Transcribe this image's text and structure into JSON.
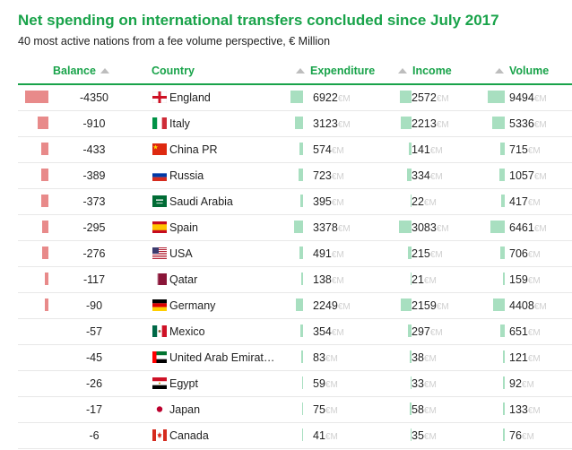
{
  "title": "Net spending on international transfers concluded since July 2017",
  "subtitle": "40 most active nations from a fee volume perspective, € Million",
  "unit": "€M",
  "columns": {
    "balance": "Balance",
    "country": "Country",
    "expenditure": "Expenditure",
    "income": "Income",
    "volume": "Volume"
  },
  "colors": {
    "accent": "#19a34a",
    "balance_bar": "#e88a8a",
    "value_bar": "#a8dfc0"
  },
  "chart_data": {
    "type": "table",
    "rows": [
      {
        "balance": "-4350",
        "country": "England",
        "flag": "england",
        "expenditure": "6922",
        "income": "2572",
        "volume": "9494"
      },
      {
        "balance": "-910",
        "country": "Italy",
        "flag": "italy",
        "expenditure": "3123",
        "income": "2213",
        "volume": "5336"
      },
      {
        "balance": "-433",
        "country": "China PR",
        "flag": "china",
        "expenditure": "574",
        "income": "141",
        "volume": "715"
      },
      {
        "balance": "-389",
        "country": "Russia",
        "flag": "russia",
        "expenditure": "723",
        "income": "334",
        "volume": "1057"
      },
      {
        "balance": "-373",
        "country": "Saudi Arabia",
        "flag": "saudi",
        "expenditure": "395",
        "income": "22",
        "volume": "417"
      },
      {
        "balance": "-295",
        "country": "Spain",
        "flag": "spain",
        "expenditure": "3378",
        "income": "3083",
        "volume": "6461"
      },
      {
        "balance": "-276",
        "country": "USA",
        "flag": "usa",
        "expenditure": "491",
        "income": "215",
        "volume": "706"
      },
      {
        "balance": "-117",
        "country": "Qatar",
        "flag": "qatar",
        "expenditure": "138",
        "income": "21",
        "volume": "159"
      },
      {
        "balance": "-90",
        "country": "Germany",
        "flag": "germany",
        "expenditure": "2249",
        "income": "2159",
        "volume": "4408"
      },
      {
        "balance": "-57",
        "country": "Mexico",
        "flag": "mexico",
        "expenditure": "354",
        "income": "297",
        "volume": "651"
      },
      {
        "balance": "-45",
        "country": "United Arab Emirat…",
        "flag": "uae",
        "expenditure": "83",
        "income": "38",
        "volume": "121"
      },
      {
        "balance": "-26",
        "country": "Egypt",
        "flag": "egypt",
        "expenditure": "59",
        "income": "33",
        "volume": "92"
      },
      {
        "balance": "-17",
        "country": "Japan",
        "flag": "japan",
        "expenditure": "75",
        "income": "58",
        "volume": "133"
      },
      {
        "balance": "-6",
        "country": "Canada",
        "flag": "canada",
        "expenditure": "41",
        "income": "35",
        "volume": "76"
      }
    ]
  }
}
